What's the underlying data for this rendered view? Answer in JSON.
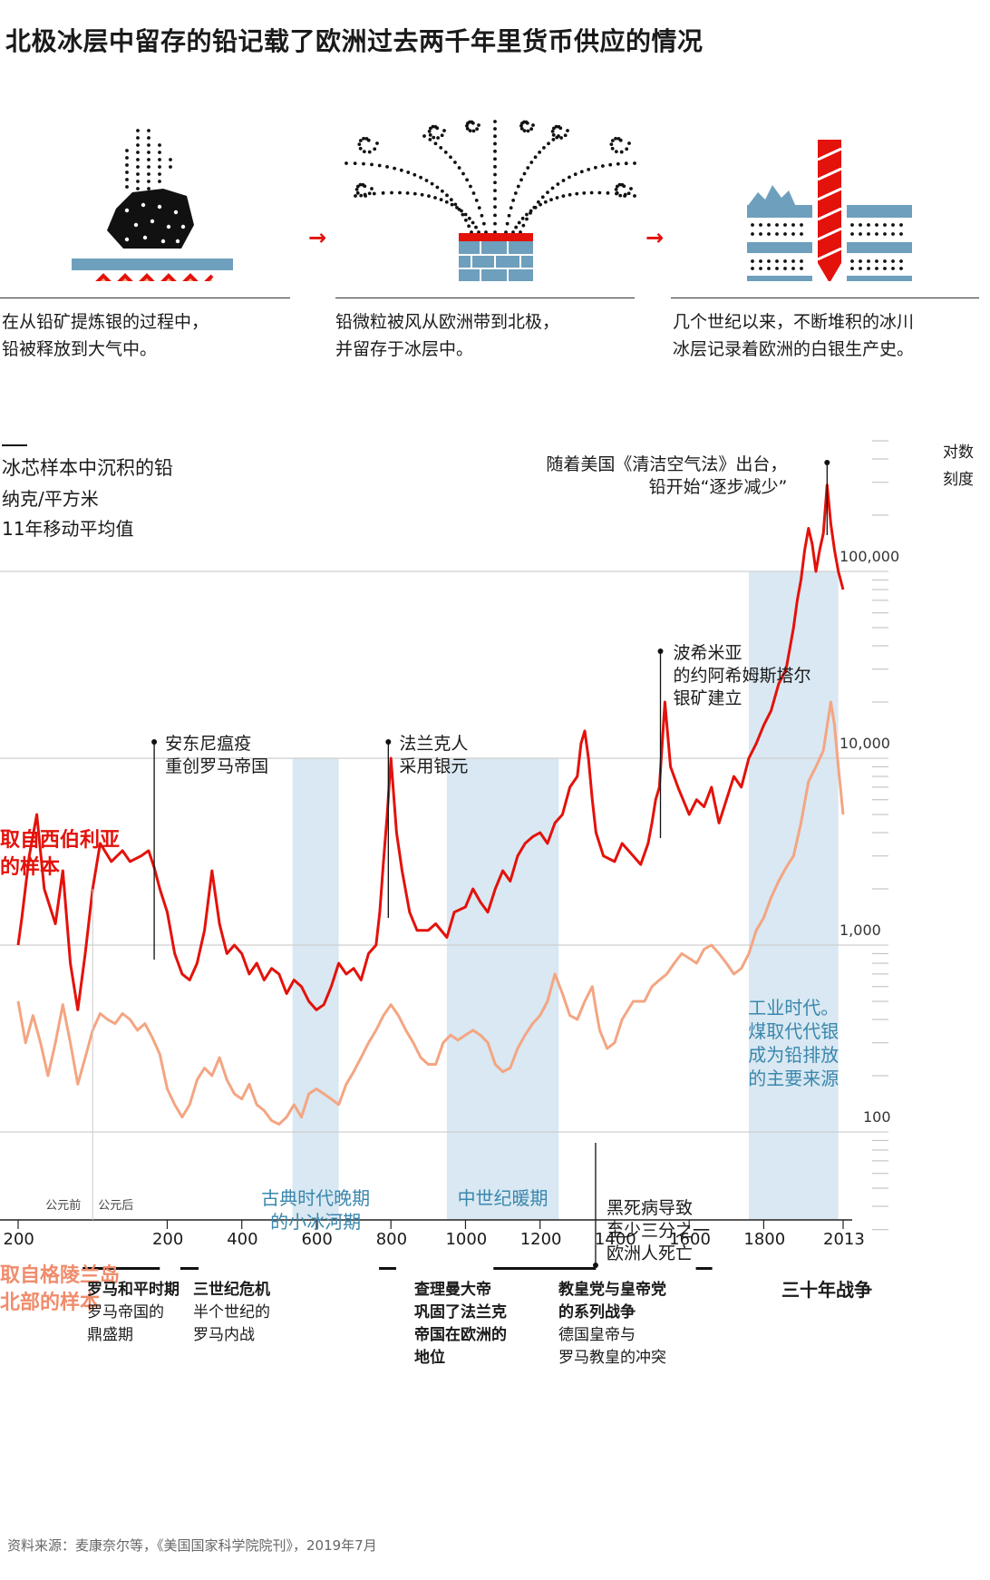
{
  "title": "北极冰层中留存的铅记载了欧洲过去两千年里货币供应的情况",
  "steps": [
    {
      "line1": "在从铅矿提炼银的过程中，",
      "line2": "铅被释放到大气中。"
    },
    {
      "line1": "铅微粒被风从欧洲带到北极，",
      "line2": "并留存于冰层中。"
    },
    {
      "line1": "几个世纪以来，不断堆积的冰川",
      "line2": "冰层记录着欧洲的白银生产史。"
    }
  ],
  "colors": {
    "red": "#e3120b",
    "orange": "#f4a582",
    "blue_band": "#d9e8f2",
    "steel": "#6e9fbd",
    "period_text": "#3a87ad"
  },
  "icons": [
    "fire-icon",
    "ore-icon",
    "smoke-icon",
    "chimney-icon",
    "ice-core-icon",
    "drill-icon"
  ],
  "chart_data": {
    "type": "line",
    "title": "冰芯样本中沉积的铅",
    "unit": "纳克/平方米",
    "note": "11年移动平均值",
    "scale_label": [
      "对数",
      "刻度"
    ],
    "y_scale": "log",
    "ylim": [
      30,
      500000
    ],
    "xlim": [
      -200,
      2013
    ],
    "y_ticks": [
      {
        "value": 100,
        "label": "100"
      },
      {
        "value": 1000,
        "label": "1,000"
      },
      {
        "value": 10000,
        "label": "10,000"
      },
      {
        "value": 100000,
        "label": "100,000"
      }
    ],
    "x_ticks": [
      {
        "value": -200,
        "label": "200"
      },
      {
        "value": 200,
        "label": "200"
      },
      {
        "value": 400,
        "label": "400"
      },
      {
        "value": 600,
        "label": "600"
      },
      {
        "value": 800,
        "label": "800"
      },
      {
        "value": 1000,
        "label": "1000"
      },
      {
        "value": 1200,
        "label": "1200"
      },
      {
        "value": 1400,
        "label": "1400"
      },
      {
        "value": 1600,
        "label": "1600"
      },
      {
        "value": 1800,
        "label": "1800"
      },
      {
        "value": 2013,
        "label": "2013"
      }
    ],
    "era_labels": {
      "bc": "公元前",
      "ad": "公元后"
    },
    "series": [
      {
        "name": "取自西伯利亚的样本",
        "label_lines": [
          "取自西伯利亚",
          "的样本"
        ],
        "color": "#e3120b",
        "points": [
          [
            -200,
            1000
          ],
          [
            -190,
            1400
          ],
          [
            -170,
            3000
          ],
          [
            -150,
            5000
          ],
          [
            -130,
            2000
          ],
          [
            -100,
            1300
          ],
          [
            -80,
            2500
          ],
          [
            -60,
            800
          ],
          [
            -40,
            450
          ],
          [
            -20,
            900
          ],
          [
            0,
            2000
          ],
          [
            20,
            3500
          ],
          [
            50,
            2800
          ],
          [
            80,
            3200
          ],
          [
            100,
            2800
          ],
          [
            130,
            3000
          ],
          [
            150,
            3200
          ],
          [
            165,
            2600
          ],
          [
            180,
            2000
          ],
          [
            200,
            1500
          ],
          [
            220,
            900
          ],
          [
            240,
            700
          ],
          [
            260,
            650
          ],
          [
            280,
            800
          ],
          [
            300,
            1200
          ],
          [
            320,
            2500
          ],
          [
            340,
            1300
          ],
          [
            360,
            900
          ],
          [
            380,
            1000
          ],
          [
            400,
            900
          ],
          [
            420,
            700
          ],
          [
            440,
            800
          ],
          [
            460,
            650
          ],
          [
            480,
            750
          ],
          [
            500,
            700
          ],
          [
            520,
            550
          ],
          [
            540,
            650
          ],
          [
            560,
            600
          ],
          [
            580,
            500
          ],
          [
            600,
            450
          ],
          [
            620,
            480
          ],
          [
            640,
            600
          ],
          [
            660,
            800
          ],
          [
            680,
            700
          ],
          [
            700,
            750
          ],
          [
            720,
            650
          ],
          [
            740,
            900
          ],
          [
            760,
            1000
          ],
          [
            770,
            1500
          ],
          [
            780,
            2800
          ],
          [
            790,
            5000
          ],
          [
            800,
            10000
          ],
          [
            815,
            4000
          ],
          [
            830,
            2500
          ],
          [
            850,
            1500
          ],
          [
            870,
            1200
          ],
          [
            900,
            1200
          ],
          [
            920,
            1300
          ],
          [
            950,
            1100
          ],
          [
            970,
            1500
          ],
          [
            1000,
            1600
          ],
          [
            1020,
            2000
          ],
          [
            1040,
            1700
          ],
          [
            1060,
            1500
          ],
          [
            1080,
            2000
          ],
          [
            1100,
            2500
          ],
          [
            1120,
            2200
          ],
          [
            1140,
            3000
          ],
          [
            1160,
            3500
          ],
          [
            1180,
            3800
          ],
          [
            1200,
            4000
          ],
          [
            1220,
            3500
          ],
          [
            1240,
            4500
          ],
          [
            1260,
            5000
          ],
          [
            1280,
            7000
          ],
          [
            1300,
            8000
          ],
          [
            1310,
            12000
          ],
          [
            1320,
            14000
          ],
          [
            1330,
            10000
          ],
          [
            1340,
            6000
          ],
          [
            1350,
            4000
          ],
          [
            1370,
            3000
          ],
          [
            1400,
            2800
          ],
          [
            1420,
            3500
          ],
          [
            1450,
            3000
          ],
          [
            1470,
            2700
          ],
          [
            1490,
            3500
          ],
          [
            1500,
            4500
          ],
          [
            1510,
            6000
          ],
          [
            1520,
            7000
          ],
          [
            1535,
            20000
          ],
          [
            1550,
            9000
          ],
          [
            1570,
            7000
          ],
          [
            1600,
            5000
          ],
          [
            1620,
            6000
          ],
          [
            1640,
            5500
          ],
          [
            1660,
            7000
          ],
          [
            1680,
            4500
          ],
          [
            1700,
            6000
          ],
          [
            1720,
            8000
          ],
          [
            1740,
            7000
          ],
          [
            1760,
            10000
          ],
          [
            1780,
            12000
          ],
          [
            1800,
            15000
          ],
          [
            1820,
            18000
          ],
          [
            1840,
            25000
          ],
          [
            1860,
            30000
          ],
          [
            1880,
            50000
          ],
          [
            1890,
            70000
          ],
          [
            1900,
            90000
          ],
          [
            1910,
            130000
          ],
          [
            1920,
            170000
          ],
          [
            1930,
            140000
          ],
          [
            1940,
            100000
          ],
          [
            1950,
            130000
          ],
          [
            1960,
            160000
          ],
          [
            1970,
            290000
          ],
          [
            1980,
            180000
          ],
          [
            1990,
            130000
          ],
          [
            2000,
            100000
          ],
          [
            2013,
            80000
          ]
        ]
      },
      {
        "name": "取自格陵兰岛北部的样本",
        "label_lines": [
          "取自格陵兰岛",
          "北部的样本"
        ],
        "color": "#f4a582",
        "points": [
          [
            -200,
            500
          ],
          [
            -180,
            300
          ],
          [
            -160,
            420
          ],
          [
            -140,
            300
          ],
          [
            -120,
            200
          ],
          [
            -100,
            300
          ],
          [
            -80,
            480
          ],
          [
            -60,
            300
          ],
          [
            -40,
            180
          ],
          [
            -20,
            250
          ],
          [
            0,
            350
          ],
          [
            20,
            430
          ],
          [
            40,
            400
          ],
          [
            60,
            380
          ],
          [
            80,
            430
          ],
          [
            100,
            400
          ],
          [
            120,
            350
          ],
          [
            140,
            380
          ],
          [
            160,
            320
          ],
          [
            180,
            260
          ],
          [
            200,
            170
          ],
          [
            220,
            140
          ],
          [
            240,
            120
          ],
          [
            260,
            140
          ],
          [
            280,
            190
          ],
          [
            300,
            220
          ],
          [
            320,
            200
          ],
          [
            340,
            250
          ],
          [
            360,
            190
          ],
          [
            380,
            160
          ],
          [
            400,
            150
          ],
          [
            420,
            180
          ],
          [
            440,
            140
          ],
          [
            460,
            130
          ],
          [
            480,
            115
          ],
          [
            500,
            110
          ],
          [
            520,
            120
          ],
          [
            540,
            140
          ],
          [
            560,
            120
          ],
          [
            580,
            160
          ],
          [
            600,
            170
          ],
          [
            620,
            160
          ],
          [
            640,
            150
          ],
          [
            660,
            140
          ],
          [
            680,
            180
          ],
          [
            700,
            210
          ],
          [
            720,
            250
          ],
          [
            740,
            300
          ],
          [
            760,
            350
          ],
          [
            780,
            420
          ],
          [
            800,
            480
          ],
          [
            820,
            420
          ],
          [
            840,
            350
          ],
          [
            860,
            300
          ],
          [
            880,
            250
          ],
          [
            900,
            230
          ],
          [
            920,
            230
          ],
          [
            940,
            300
          ],
          [
            960,
            330
          ],
          [
            980,
            310
          ],
          [
            1000,
            330
          ],
          [
            1020,
            350
          ],
          [
            1040,
            330
          ],
          [
            1060,
            300
          ],
          [
            1080,
            230
          ],
          [
            1100,
            210
          ],
          [
            1120,
            220
          ],
          [
            1140,
            280
          ],
          [
            1160,
            330
          ],
          [
            1180,
            380
          ],
          [
            1200,
            420
          ],
          [
            1220,
            500
          ],
          [
            1240,
            700
          ],
          [
            1260,
            550
          ],
          [
            1280,
            420
          ],
          [
            1300,
            400
          ],
          [
            1320,
            500
          ],
          [
            1340,
            600
          ],
          [
            1350,
            450
          ],
          [
            1360,
            350
          ],
          [
            1380,
            280
          ],
          [
            1400,
            300
          ],
          [
            1420,
            400
          ],
          [
            1450,
            500
          ],
          [
            1480,
            500
          ],
          [
            1500,
            600
          ],
          [
            1520,
            650
          ],
          [
            1540,
            700
          ],
          [
            1560,
            800
          ],
          [
            1580,
            900
          ],
          [
            1600,
            850
          ],
          [
            1620,
            800
          ],
          [
            1640,
            950
          ],
          [
            1660,
            1000
          ],
          [
            1680,
            900
          ],
          [
            1700,
            800
          ],
          [
            1720,
            700
          ],
          [
            1740,
            750
          ],
          [
            1760,
            900
          ],
          [
            1780,
            1200
          ],
          [
            1800,
            1400
          ],
          [
            1820,
            1800
          ],
          [
            1840,
            2200
          ],
          [
            1860,
            2600
          ],
          [
            1880,
            3000
          ],
          [
            1900,
            4500
          ],
          [
            1920,
            7500
          ],
          [
            1940,
            9000
          ],
          [
            1960,
            11000
          ],
          [
            1980,
            20000
          ],
          [
            1990,
            15000
          ],
          [
            2000,
            9000
          ],
          [
            2013,
            5000
          ]
        ]
      }
    ],
    "shaded_periods": [
      {
        "start": 536,
        "end": 660,
        "label_lines": [
          "古典时代晚期",
          "的小冰河期"
        ]
      },
      {
        "start": 950,
        "end": 1250,
        "label_lines": [
          "中世纪暖期"
        ]
      },
      {
        "start": 1760,
        "end": 2000,
        "label_lines": [
          "工业时代。",
          "煤取代代银",
          "成为铅排放",
          "的主要来源"
        ]
      }
    ],
    "annotations": [
      {
        "x": 165,
        "lines": [
          "安东尼瘟疫",
          "重创罗马帝国"
        ]
      },
      {
        "x": 793,
        "lines": [
          "法兰克人",
          "采用银元"
        ]
      },
      {
        "x": 1523,
        "lines": [
          "波希米亚",
          "的约阿希姆斯塔尔",
          "银矿建立"
        ]
      },
      {
        "x": 1970,
        "lines": [
          "随着美国《清洁空气法》出台，",
          "铅开始“逐步减少”"
        ]
      },
      {
        "x": 1349,
        "lines": [
          "黑死病导致",
          "至少三分之一",
          "欧洲人死亡"
        ]
      }
    ],
    "bottom_periods": [
      {
        "start": -27,
        "end": 180,
        "title": "罗马和平时期",
        "lines": [
          "罗马帝国的",
          "鼎盛期"
        ]
      },
      {
        "start": 235,
        "end": 284,
        "title": "三世纪危机",
        "lines": [
          "半个世纪的",
          "罗马内战"
        ]
      },
      {
        "start": 768,
        "end": 814,
        "title": "查理曼大帝",
        "lines": [
          "巩固了法兰克",
          "帝国在欧洲的",
          "地位"
        ]
      },
      {
        "start": 1075,
        "end": 1350,
        "title": "教皇党与皇帝党",
        "lines": [
          "的系列战争",
          "德国皇帝与",
          "罗马教皇的冲突"
        ]
      },
      {
        "start": 1618,
        "end": 1648,
        "title": "三十年战争",
        "lines": []
      }
    ]
  },
  "source": "资料来源：麦康奈尔等，《美国国家科学院院刊》，2019年7月"
}
